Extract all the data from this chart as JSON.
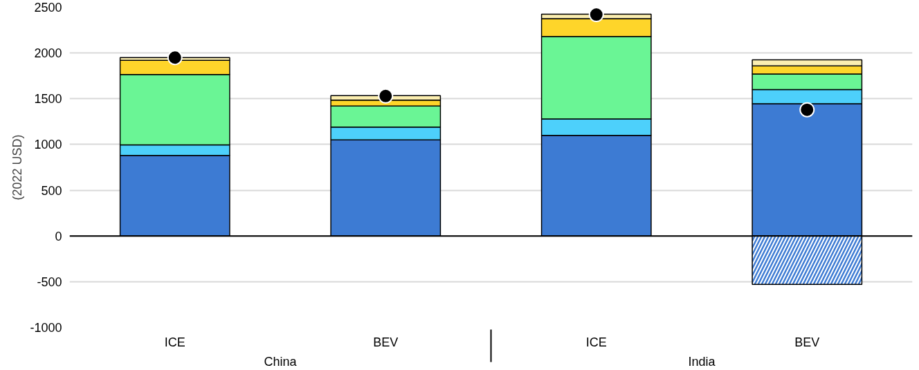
{
  "chart_data": {
    "type": "bar",
    "stacked": true,
    "ylabel": "(2022 USD)",
    "categories": [
      "ICE",
      "BEV",
      "ICE",
      "BEV"
    ],
    "annotations": [
      "China",
      "India"
    ],
    "series": [
      {
        "color": "#3d7bd3",
        "values": [
          880,
          1050,
          1100,
          1445
        ]
      },
      {
        "color": "#4dd0fb",
        "values": [
          115,
          140,
          180,
          155
        ]
      },
      {
        "color": "#6af595",
        "values": [
          770,
          230,
          900,
          170
        ]
      },
      {
        "color": "#fed52a",
        "values": [
          155,
          65,
          195,
          90
        ]
      },
      {
        "color": "#fbeeb0",
        "values": [
          30,
          50,
          50,
          65
        ]
      },
      {
        "color": "#3d7bd3",
        "values": [
          null,
          null,
          null,
          -530
        ]
      },
      {
        "type": "scatter",
        "color": "#000000",
        "values": [
          1950,
          1530,
          2420,
          1380
        ]
      }
    ],
    "ylim": [
      -1000,
      2500
    ],
    "yticks": [
      -1000,
      -500,
      0,
      500,
      1000,
      1500,
      2000,
      2500
    ],
    "grid": "y",
    "marker": "circle"
  }
}
